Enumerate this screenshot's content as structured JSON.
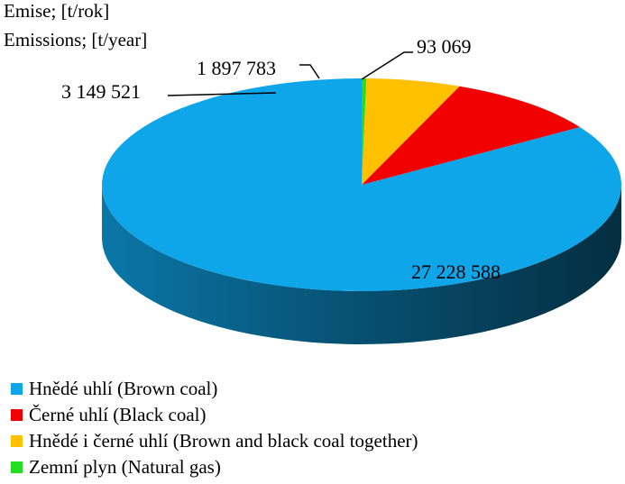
{
  "chart_data": {
    "type": "pie",
    "title_lines": [
      "Emise; [t/rok]",
      "Emissions; [t/year]"
    ],
    "slices": [
      {
        "name": "Hnědé uhlí (Brown coal)",
        "value": 27228588,
        "label": "27 228 588",
        "color": "#0ea5e9"
      },
      {
        "name": "Černé uhlí (Black coal)",
        "value": 3149521,
        "label": "3 149 521",
        "color": "#f20000"
      },
      {
        "name": "Hnědé i černé uhlí (Brown and black coal together)",
        "value": 1897783,
        "label": "1 897 783",
        "color": "#ffc000"
      },
      {
        "name": "Zemní plyn (Natural gas)",
        "value": 93069,
        "label": "93 069",
        "color": "#22dd22"
      }
    ],
    "legend_position": "bottom"
  }
}
